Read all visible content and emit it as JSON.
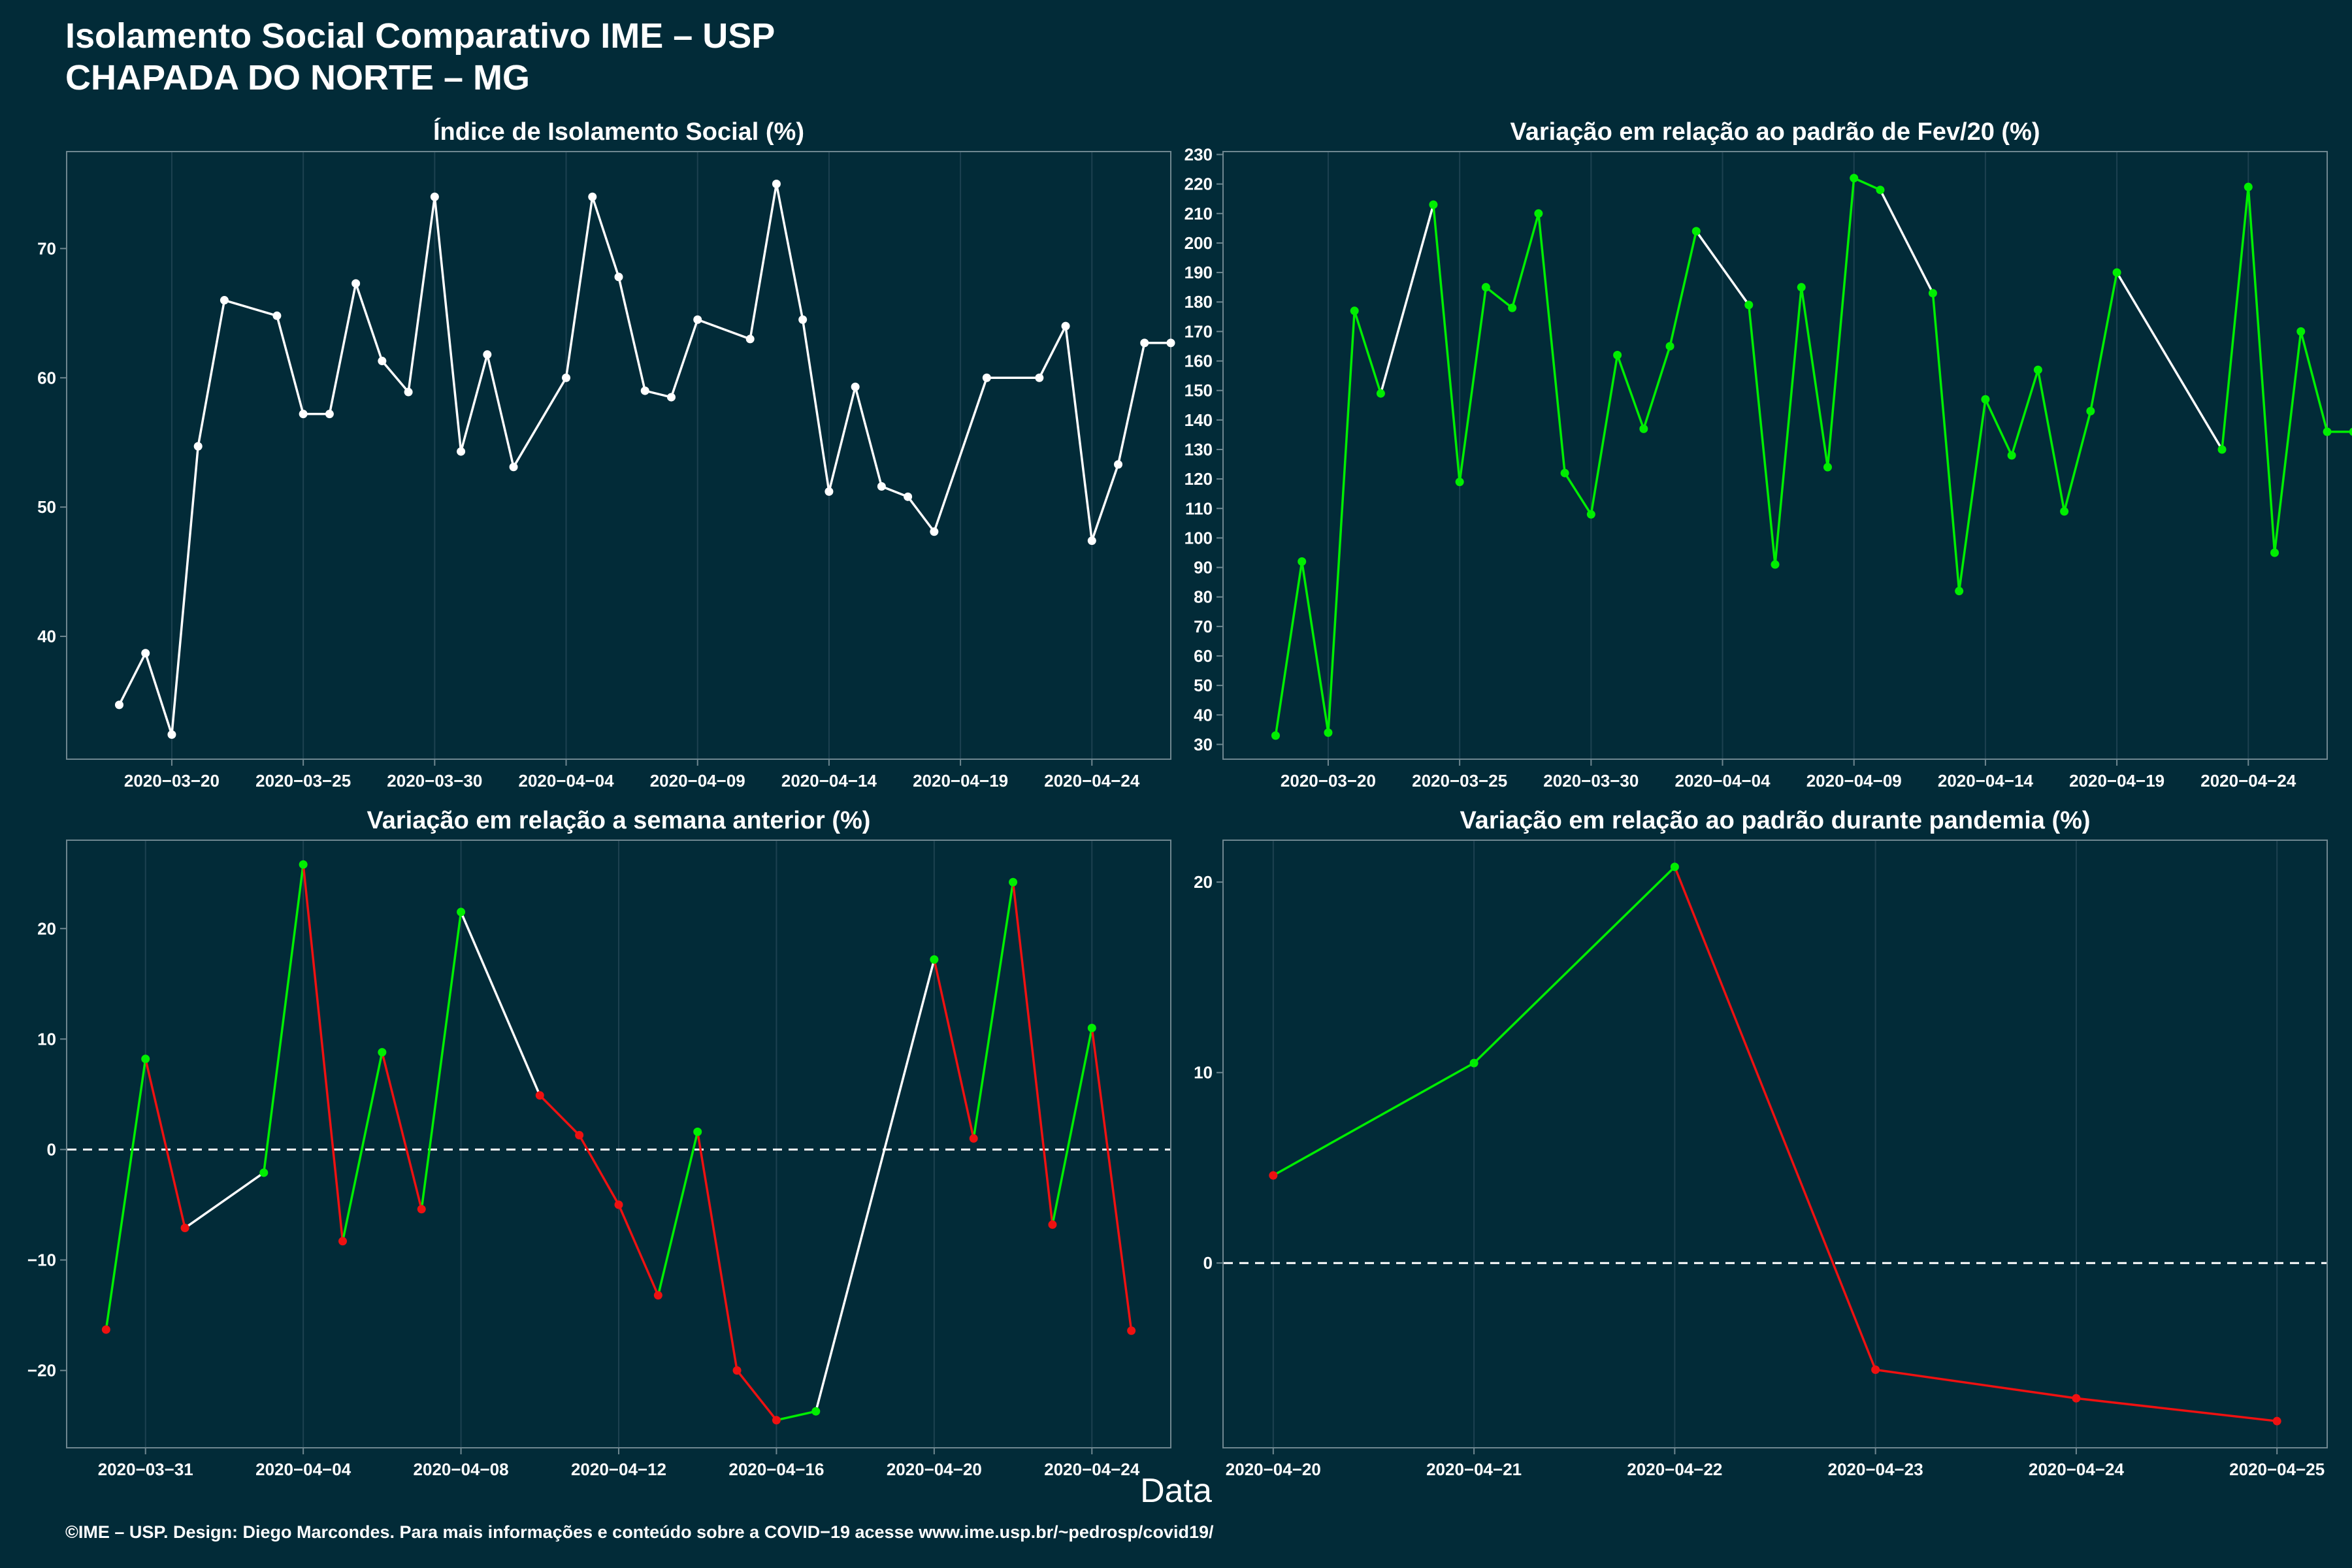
{
  "header": {
    "title_line1": "Isolamento Social Comparativo IME – USP",
    "title_line2": "CHAPADA DO NORTE – MG"
  },
  "footer": {
    "x_axis_label": "Data",
    "caption": "©IME – USP. Design: Diego Marcondes. Para mais informações e conteúdo sobre a COVID−19 acesse www.ime.usp.br/~pedrosp/covid19/"
  },
  "colors": {
    "background": "#022b38",
    "line_default": "#ffffff",
    "increase": "#00ee00",
    "decrease": "#ee1111",
    "grid": "#1d4150"
  },
  "chart_data": [
    {
      "type": "line",
      "title": "Índice de Isolamento Social (%)",
      "xlim": [
        "2020-03-16",
        "2020-04-27"
      ],
      "ylim": [
        30.5,
        77.5
      ],
      "x_ticks": [
        "2020-03-20",
        "2020-03-25",
        "2020-03-30",
        "2020-04-04",
        "2020-04-09",
        "2020-04-14",
        "2020-04-19",
        "2020-04-24"
      ],
      "y_ticks": [
        40,
        50,
        60,
        70
      ],
      "color_mode": "white",
      "series": [
        {
          "x": [
            "2020-03-18",
            "2020-03-19",
            "2020-03-20",
            "2020-03-21",
            "2020-03-22",
            "2020-03-24",
            "2020-03-25",
            "2020-03-26",
            "2020-03-27",
            "2020-03-28",
            "2020-03-29",
            "2020-03-30",
            "2020-03-31",
            "2020-04-01",
            "2020-04-02",
            "2020-04-04",
            "2020-04-05",
            "2020-04-06",
            "2020-04-07",
            "2020-04-08",
            "2020-04-09",
            "2020-04-11",
            "2020-04-12",
            "2020-04-13",
            "2020-04-14",
            "2020-04-15",
            "2020-04-16",
            "2020-04-17",
            "2020-04-18",
            "2020-04-20",
            "2020-04-22",
            "2020-04-23",
            "2020-04-24",
            "2020-04-25",
            "2020-04-26",
            "2020-04-27"
          ],
          "y": [
            34.7,
            38.7,
            32.4,
            54.7,
            66.0,
            64.8,
            57.2,
            57.2,
            67.3,
            61.3,
            58.9,
            74.0,
            54.3,
            61.8,
            53.1,
            60.0,
            74.0,
            67.8,
            59.0,
            58.5,
            64.5,
            63.0,
            75.0,
            64.5,
            51.2,
            59.3,
            51.6,
            50.8,
            48.1,
            60.0,
            60.0,
            64.0,
            47.4,
            53.3,
            62.7,
            62.7
          ]
        }
      ]
    },
    {
      "type": "line",
      "title": "Variação em relação ao padrão de Fev/20 (%)",
      "xlim": [
        "2020-03-16",
        "2020-04-27"
      ],
      "ylim": [
        25,
        231
      ],
      "x_ticks": [
        "2020-03-20",
        "2020-03-25",
        "2020-03-30",
        "2020-04-04",
        "2020-04-09",
        "2020-04-14",
        "2020-04-19",
        "2020-04-24"
      ],
      "y_ticks": [
        30,
        40,
        50,
        60,
        70,
        80,
        90,
        100,
        110,
        120,
        130,
        140,
        150,
        160,
        170,
        180,
        190,
        200,
        210,
        220,
        230
      ],
      "color_mode": "green_white",
      "series": [
        {
          "x": [
            "2020-03-18",
            "2020-03-19",
            "2020-03-20",
            "2020-03-21",
            "2020-03-22",
            "2020-03-24",
            "2020-03-25",
            "2020-03-26",
            "2020-03-27",
            "2020-03-28",
            "2020-03-29",
            "2020-03-30",
            "2020-03-31",
            "2020-04-01",
            "2020-04-02",
            "2020-04-03",
            "2020-04-05",
            "2020-04-06",
            "2020-04-07",
            "2020-04-08",
            "2020-04-09",
            "2020-04-10",
            "2020-04-12",
            "2020-04-13",
            "2020-04-14",
            "2020-04-15",
            "2020-04-16",
            "2020-04-17",
            "2020-04-18",
            "2020-04-19",
            "2020-04-23",
            "2020-04-24",
            "2020-04-25",
            "2020-04-26",
            "2020-04-27",
            "2020-04-28"
          ],
          "y": [
            33,
            92,
            34,
            177,
            149,
            213,
            119,
            185,
            178,
            210,
            122,
            108,
            162,
            137,
            165,
            204,
            179,
            91,
            185,
            124,
            222,
            218,
            183,
            82,
            147,
            128,
            157,
            109,
            143,
            190,
            130,
            219,
            95,
            170,
            136,
            136
          ]
        }
      ]
    },
    {
      "type": "line",
      "title": "Variação em relação a semana anterior (%)",
      "xlim": [
        "2020-03-29",
        "2020-04-26"
      ],
      "ylim": [
        -27,
        28
      ],
      "x_ticks": [
        "2020-03-31",
        "2020-04-04",
        "2020-04-08",
        "2020-04-12",
        "2020-04-16",
        "2020-04-20",
        "2020-04-24"
      ],
      "y_ticks": [
        -20,
        -10,
        0,
        10,
        20
      ],
      "reference_line_y": 0,
      "color_mode": "red_green_white",
      "series": [
        {
          "x": [
            "2020-03-30",
            "2020-03-31",
            "2020-04-01",
            "2020-04-03",
            "2020-04-04",
            "2020-04-05",
            "2020-04-06",
            "2020-04-07",
            "2020-04-08",
            "2020-04-10",
            "2020-04-11",
            "2020-04-12",
            "2020-04-13",
            "2020-04-14",
            "2020-04-15",
            "2020-04-16",
            "2020-04-17",
            "2020-04-20",
            "2020-04-21",
            "2020-04-22",
            "2020-04-23",
            "2020-04-24",
            "2020-04-25"
          ],
          "y": [
            -16.3,
            8.2,
            -7.1,
            -2.1,
            25.8,
            -8.3,
            8.8,
            -5.4,
            21.5,
            4.9,
            1.3,
            -5.0,
            -13.2,
            1.6,
            -20.0,
            -24.5,
            -23.7,
            17.2,
            1.0,
            24.2,
            -6.8,
            11.0,
            -16.4
          ]
        }
      ]
    },
    {
      "type": "line",
      "title": "Variação em relação ao padrão durante pandemia (%)",
      "xlim": [
        "2020-04-19.75",
        "2020-04-25.25"
      ],
      "ylim": [
        -9.7,
        22.2
      ],
      "x_ticks": [
        "2020-04-20",
        "2020-04-21",
        "2020-04-22",
        "2020-04-23",
        "2020-04-24",
        "2020-04-25"
      ],
      "y_ticks": [
        0,
        10,
        20
      ],
      "reference_line_y": 0,
      "color_mode": "red_green_white",
      "series": [
        {
          "x": [
            "2020-04-20",
            "2020-04-21",
            "2020-04-22",
            "2020-04-23",
            "2020-04-24",
            "2020-04-25"
          ],
          "y": [
            4.6,
            10.5,
            20.8,
            -5.6,
            -7.1,
            -8.3
          ]
        }
      ]
    }
  ]
}
